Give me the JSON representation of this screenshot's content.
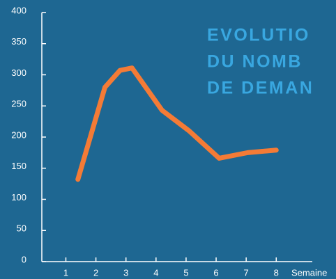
{
  "chart_data": {
    "type": "line",
    "title_lines": [
      "EVOLUTIO",
      "DU NOMB",
      "DE DEMAN"
    ],
    "x_label": "Semaine",
    "x": [
      1.4,
      2.3,
      2.8,
      3.2,
      4.2,
      5.1,
      6.1,
      7.05,
      8
    ],
    "series": [
      {
        "color": "#f47b36",
        "values": [
          132,
          280,
          307,
          311,
          243,
          210,
          166,
          175,
          179
        ]
      }
    ],
    "xlim": [
      0.2,
      9.2
    ],
    "xticks": [
      1,
      2,
      3,
      4,
      5,
      6,
      7,
      8
    ],
    "ylim": [
      0,
      400
    ],
    "yticks": [
      0,
      50,
      100,
      150,
      200,
      250,
      300,
      350,
      400
    ],
    "background": "#1e6792",
    "title_color": "#39a7e0"
  }
}
